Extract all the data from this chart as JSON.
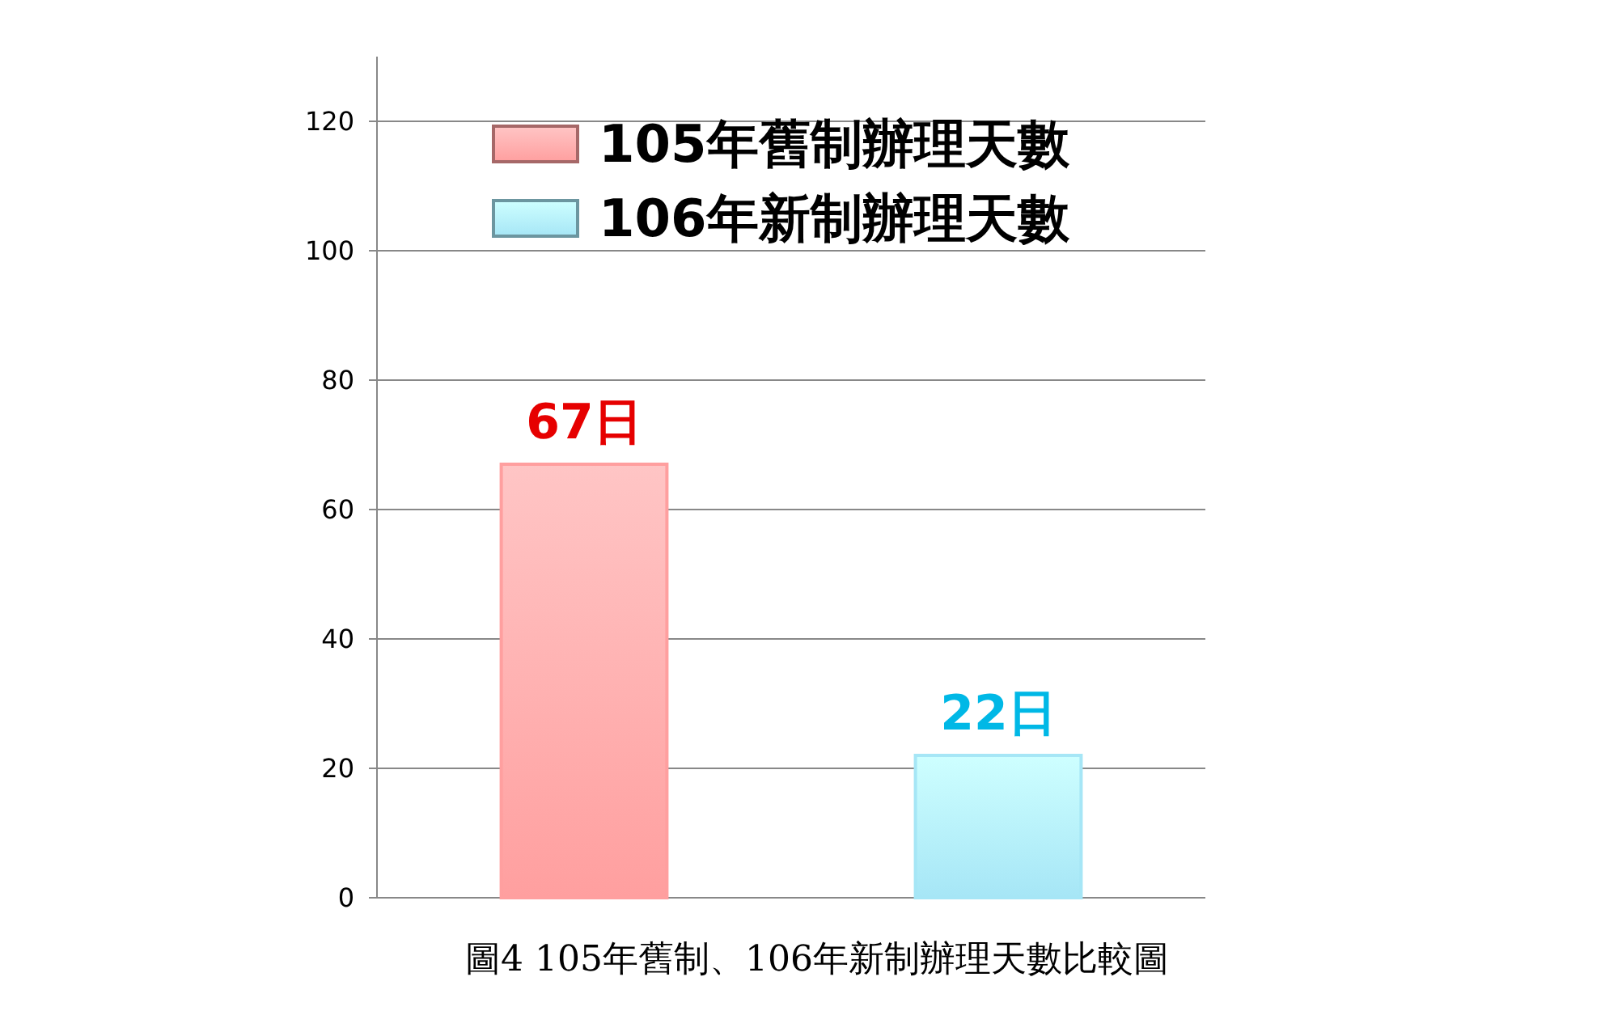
{
  "chart_data": {
    "type": "bar",
    "categories": [
      null,
      null
    ],
    "series": [
      {
        "name": "105年舊制辦理天數",
        "color": "#ff9f9f",
        "values": [
          67,
          null
        ],
        "value_labels": [
          "67日",
          null
        ]
      },
      {
        "name": "106年新制辦理天數",
        "color": "#a6e6f6",
        "values": [
          null,
          22
        ],
        "value_labels": [
          null,
          "22日"
        ]
      }
    ],
    "ylim": [
      0,
      130
    ],
    "yticks": [
      0,
      20,
      40,
      60,
      80,
      100,
      120
    ],
    "grid": "y",
    "legend": "top",
    "annotations": [
      "圖4 105年舊制、106年新制辦理天數比較圖"
    ]
  }
}
